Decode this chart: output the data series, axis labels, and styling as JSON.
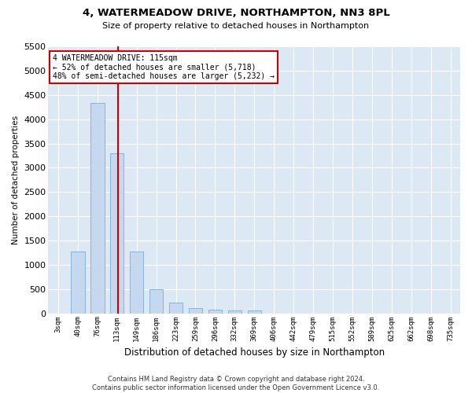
{
  "title": "4, WATERMEADOW DRIVE, NORTHAMPTON, NN3 8PL",
  "subtitle": "Size of property relative to detached houses in Northampton",
  "xlabel": "Distribution of detached houses by size in Northampton",
  "ylabel": "Number of detached properties",
  "bar_color": "#c5d8f0",
  "bar_edge_color": "#7aadd4",
  "categories": [
    "3sqm",
    "40sqm",
    "76sqm",
    "113sqm",
    "149sqm",
    "186sqm",
    "223sqm",
    "259sqm",
    "296sqm",
    "332sqm",
    "369sqm",
    "406sqm",
    "442sqm",
    "479sqm",
    "515sqm",
    "552sqm",
    "589sqm",
    "625sqm",
    "662sqm",
    "698sqm",
    "735sqm"
  ],
  "values": [
    0,
    1270,
    4340,
    3300,
    1280,
    490,
    220,
    100,
    80,
    60,
    60,
    0,
    0,
    0,
    0,
    0,
    0,
    0,
    0,
    0,
    0
  ],
  "ylim": [
    0,
    5500
  ],
  "yticks": [
    0,
    500,
    1000,
    1500,
    2000,
    2500,
    3000,
    3500,
    4000,
    4500,
    5000,
    5500
  ],
  "vline_color": "#cc0000",
  "annotation_line1": "4 WATERMEADOW DRIVE: 115sqm",
  "annotation_line2": "← 52% of detached houses are smaller (5,718)",
  "annotation_line3": "48% of semi-detached houses are larger (5,232) →",
  "annotation_box_color": "#ffffff",
  "annotation_box_edge": "#cc0000",
  "bg_color": "#dde8f5",
  "fig_bg_color": "#ffffff",
  "footer": "Contains HM Land Registry data © Crown copyright and database right 2024.\nContains public sector information licensed under the Open Government Licence v3.0.",
  "bar_width": 0.7,
  "vline_sqm": 115,
  "bin_starts": [
    3,
    40,
    76,
    113,
    149,
    186,
    223,
    259,
    296,
    332,
    369,
    406,
    442,
    479,
    515,
    552,
    589,
    625,
    662,
    698,
    735
  ]
}
